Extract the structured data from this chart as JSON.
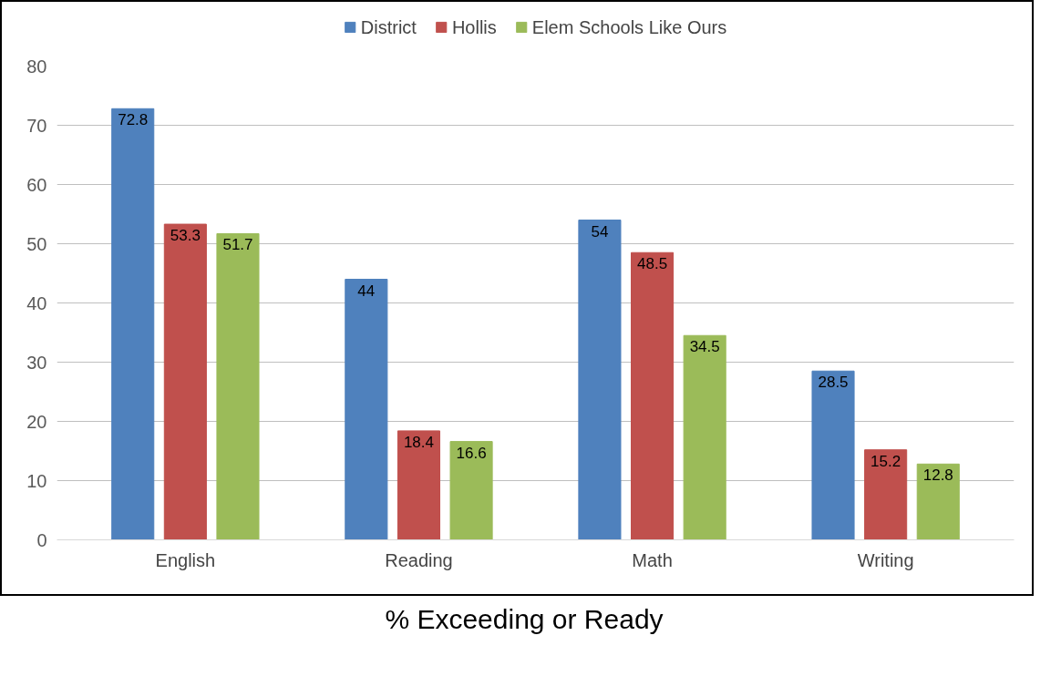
{
  "chart_data": {
    "type": "bar",
    "xlabel": "% Exceeding or Ready",
    "categories": [
      "English",
      "Reading",
      "Math",
      "Writing"
    ],
    "series": [
      {
        "name": "District",
        "color": "#4f81bd",
        "values": [
          72.8,
          44,
          54,
          28.5
        ]
      },
      {
        "name": "Hollis",
        "color": "#c0504d",
        "values": [
          53.3,
          18.4,
          48.5,
          15.2
        ]
      },
      {
        "name": "Elem Schools Like Ours",
        "color": "#9bbb59",
        "values": [
          51.7,
          16.6,
          34.5,
          12.8
        ]
      }
    ],
    "ylim": [
      0,
      80
    ],
    "yticks": [
      0,
      10,
      20,
      30,
      40,
      50,
      60,
      70,
      80
    ],
    "grid": "y",
    "legend": "top",
    "data_labels": true
  }
}
